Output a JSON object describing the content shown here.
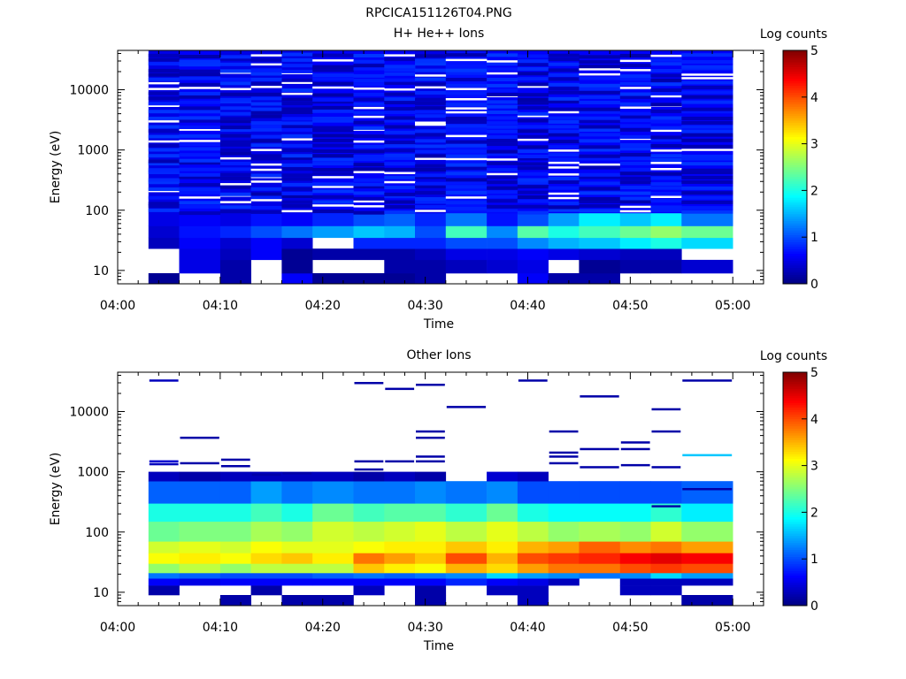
{
  "figure": {
    "title": "RPCICA151126T04.PNG"
  },
  "chart_data": [
    {
      "type": "heatmap",
      "title": "H+ He++ Ions",
      "xlabel": "Time",
      "ylabel": "Energy (eV)",
      "yscale": "log",
      "xlim": [
        "04:00",
        "05:03"
      ],
      "ylim": [
        6,
        45000
      ],
      "x_ticks": [
        "04:00",
        "04:10",
        "04:20",
        "04:30",
        "04:40",
        "04:50",
        "05:00"
      ],
      "y_ticks": [
        "10",
        "100",
        "1000",
        "10000"
      ],
      "y_tick_values": [
        10,
        100,
        1000,
        10000
      ],
      "colorbar": {
        "label": "Log counts",
        "min": 0,
        "max": 5,
        "ticks": [
          "0",
          "1",
          "2",
          "3",
          "4",
          "5"
        ],
        "colormap": "jet"
      },
      "time_bins": [
        "04:03",
        "04:06",
        "04:10",
        "04:13",
        "04:16",
        "04:19",
        "04:23",
        "04:26",
        "04:29",
        "04:32",
        "04:36",
        "04:39",
        "04:42",
        "04:45",
        "04:49",
        "04:52",
        "04:55"
      ],
      "energy_bands": [
        {
          "emin": 6,
          "emax": 9,
          "values": [
            0.1,
            null,
            0.2,
            null,
            0.6,
            0.1,
            0.1,
            0.1,
            0.2,
            null,
            null,
            0.6,
            0.2,
            0.2,
            null,
            null,
            null
          ]
        },
        {
          "emin": 9,
          "emax": 15,
          "values": [
            null,
            0.5,
            0.2,
            null,
            0.1,
            null,
            null,
            0.2,
            0.2,
            0.3,
            0.4,
            0.5,
            null,
            0.1,
            0.2,
            0.2,
            0.4
          ]
        },
        {
          "emin": 15,
          "emax": 23,
          "values": [
            null,
            0.5,
            0.3,
            0.6,
            0.1,
            0.2,
            0.2,
            0.2,
            0.3,
            0.5,
            0.5,
            0.6,
            0.5,
            0.4,
            0.3,
            0.3,
            null
          ]
        },
        {
          "emin": 23,
          "emax": 35,
          "values": [
            0.3,
            0.6,
            0.4,
            0.6,
            0.4,
            null,
            0.8,
            0.8,
            0.8,
            1.0,
            1.0,
            1.3,
            1.5,
            1.6,
            1.8,
            2.0,
            1.7
          ]
        },
        {
          "emin": 35,
          "emax": 55,
          "values": [
            0.4,
            0.7,
            0.8,
            1.0,
            1.2,
            1.4,
            1.6,
            1.5,
            1.0,
            2.2,
            1.3,
            2.3,
            2.0,
            2.2,
            2.4,
            2.6,
            2.4
          ]
        },
        {
          "emin": 55,
          "emax": 90,
          "values": [
            0.5,
            0.6,
            0.5,
            0.7,
            0.6,
            0.8,
            1.0,
            1.1,
            0.8,
            1.2,
            0.7,
            1.0,
            1.4,
            1.8,
            1.6,
            1.8,
            1.2
          ]
        },
        {
          "emin": 90,
          "emax": 45000,
          "values": [
            0.5,
            0.6,
            0.5,
            0.5,
            0.5,
            0.6,
            0.6,
            0.6,
            0.5,
            0.7,
            0.6,
            0.6,
            0.6,
            0.6,
            0.6,
            0.6,
            0.6
          ]
        }
      ]
    },
    {
      "type": "heatmap",
      "title": "Other Ions",
      "xlabel": "Time",
      "ylabel": "Energy (eV)",
      "yscale": "log",
      "xlim": [
        "04:00",
        "05:03"
      ],
      "ylim": [
        6,
        45000
      ],
      "x_ticks": [
        "04:00",
        "04:10",
        "04:20",
        "04:30",
        "04:40",
        "04:50",
        "05:00"
      ],
      "y_ticks": [
        "10",
        "100",
        "1000",
        "10000"
      ],
      "y_tick_values": [
        10,
        100,
        1000,
        10000
      ],
      "colorbar": {
        "label": "Log counts",
        "min": 0,
        "max": 5,
        "ticks": [
          "0",
          "1",
          "2",
          "3",
          "4",
          "5"
        ],
        "colormap": "jet"
      },
      "time_bins": [
        "04:03",
        "04:06",
        "04:10",
        "04:13",
        "04:16",
        "04:19",
        "04:23",
        "04:26",
        "04:29",
        "04:32",
        "04:36",
        "04:39",
        "04:42",
        "04:45",
        "04:49",
        "04:52",
        "04:55"
      ],
      "energy_bands": [
        {
          "emin": 6,
          "emax": 9,
          "values": [
            null,
            null,
            0.2,
            null,
            0.2,
            0.2,
            null,
            null,
            0.2,
            null,
            null,
            0.3,
            null,
            null,
            null,
            null,
            0.2
          ]
        },
        {
          "emin": 9,
          "emax": 13,
          "values": [
            0.2,
            null,
            null,
            0.2,
            null,
            null,
            0.3,
            null,
            0.2,
            null,
            0.3,
            0.3,
            null,
            null,
            0.3,
            0.3,
            null
          ]
        },
        {
          "emin": 13,
          "emax": 17,
          "values": [
            0.6,
            0.5,
            0.6,
            0.6,
            0.6,
            0.6,
            0.6,
            0.6,
            0.6,
            0.8,
            0.6,
            0.5,
            0.3,
            null,
            0.3,
            0.3,
            0.3
          ]
        },
        {
          "emin": 17,
          "emax": 21,
          "values": [
            1.2,
            1.1,
            1.0,
            1.0,
            1.0,
            1.1,
            1.2,
            1.1,
            1.2,
            1.3,
            1.7,
            1.4,
            1.3,
            1.2,
            1.3,
            1.7,
            1.4
          ]
        },
        {
          "emin": 21,
          "emax": 30,
          "values": [
            2.6,
            2.8,
            2.6,
            2.8,
            2.8,
            2.8,
            3.4,
            3.2,
            3.1,
            3.5,
            3.3,
            3.6,
            3.8,
            3.8,
            4.0,
            4.1,
            4.0
          ]
        },
        {
          "emin": 30,
          "emax": 45,
          "values": [
            3.1,
            3.2,
            3.1,
            3.3,
            3.4,
            3.2,
            3.8,
            3.6,
            3.4,
            4.0,
            3.5,
            4.0,
            4.1,
            4.2,
            4.4,
            4.5,
            4.4
          ]
        },
        {
          "emin": 45,
          "emax": 70,
          "values": [
            2.9,
            3.0,
            2.9,
            3.1,
            3.0,
            3.0,
            3.1,
            3.2,
            3.2,
            3.4,
            3.2,
            3.5,
            3.6,
            3.9,
            3.7,
            3.8,
            3.6
          ]
        },
        {
          "emin": 70,
          "emax": 150,
          "values": [
            2.4,
            2.5,
            2.5,
            2.7,
            2.6,
            2.9,
            2.8,
            2.9,
            3.0,
            2.8,
            3.0,
            2.8,
            2.6,
            2.7,
            2.6,
            2.9,
            2.6
          ]
        },
        {
          "emin": 150,
          "emax": 300,
          "values": [
            2.0,
            2.0,
            2.0,
            2.2,
            2.0,
            2.4,
            2.2,
            2.3,
            2.3,
            2.1,
            2.4,
            2.0,
            1.9,
            1.9,
            1.9,
            2.1,
            1.8
          ]
        },
        {
          "emin": 300,
          "emax": 700,
          "values": [
            1.1,
            1.1,
            1.1,
            1.4,
            1.2,
            1.3,
            1.2,
            1.2,
            1.3,
            1.2,
            1.3,
            1.0,
            1.0,
            1.0,
            1.0,
            1.0,
            1.1
          ]
        },
        {
          "emin": 700,
          "emax": 1000,
          "values": [
            0.3,
            0.2,
            0.3,
            0.3,
            0.3,
            0.3,
            0.2,
            0.3,
            0.2,
            null,
            0.4,
            0.3,
            null,
            null,
            null,
            null,
            null
          ]
        }
      ],
      "sparse_lines": [
        {
          "time_bin": 0,
          "energy": 33000,
          "value": 0.3
        },
        {
          "time_bin": 0,
          "energy": 1500,
          "value": 0.4
        },
        {
          "time_bin": 0,
          "energy": 1350,
          "value": 0.3
        },
        {
          "time_bin": 1,
          "energy": 3700,
          "value": 0.2
        },
        {
          "time_bin": 1,
          "energy": 1400,
          "value": 0.2
        },
        {
          "time_bin": 2,
          "energy": 1600,
          "value": 0.2
        },
        {
          "time_bin": 2,
          "energy": 1250,
          "value": 0.2
        },
        {
          "time_bin": 3,
          "energy": 900,
          "value": 0.2
        },
        {
          "time_bin": 4,
          "energy": 950,
          "value": 0.2
        },
        {
          "time_bin": 6,
          "energy": 30000,
          "value": 0.2
        },
        {
          "time_bin": 6,
          "energy": 1500,
          "value": 0.2
        },
        {
          "time_bin": 6,
          "energy": 1100,
          "value": 0.2
        },
        {
          "time_bin": 7,
          "energy": 24000,
          "value": 0.2
        },
        {
          "time_bin": 7,
          "energy": 1500,
          "value": 0.2
        },
        {
          "time_bin": 8,
          "energy": 28000,
          "value": 0.2
        },
        {
          "time_bin": 8,
          "energy": 4700,
          "value": 0.2
        },
        {
          "time_bin": 8,
          "energy": 3700,
          "value": 0.2
        },
        {
          "time_bin": 8,
          "energy": 1800,
          "value": 0.2
        },
        {
          "time_bin": 8,
          "energy": 1500,
          "value": 0.2
        },
        {
          "time_bin": 9,
          "energy": 12000,
          "value": 0.2
        },
        {
          "time_bin": 11,
          "energy": 33000,
          "value": 0.2
        },
        {
          "time_bin": 12,
          "energy": 4700,
          "value": 0.2
        },
        {
          "time_bin": 12,
          "energy": 2100,
          "value": 0.2
        },
        {
          "time_bin": 12,
          "energy": 1800,
          "value": 0.2
        },
        {
          "time_bin": 12,
          "energy": 1400,
          "value": 0.2
        },
        {
          "time_bin": 13,
          "energy": 18000,
          "value": 0.2
        },
        {
          "time_bin": 13,
          "energy": 2400,
          "value": 0.2
        },
        {
          "time_bin": 13,
          "energy": 1200,
          "value": 0.2
        },
        {
          "time_bin": 14,
          "energy": 3100,
          "value": 0.2
        },
        {
          "time_bin": 14,
          "energy": 2400,
          "value": 0.2
        },
        {
          "time_bin": 14,
          "energy": 1300,
          "value": 0.2
        },
        {
          "time_bin": 15,
          "energy": 11000,
          "value": 0.2
        },
        {
          "time_bin": 15,
          "energy": 4700,
          "value": 0.2
        },
        {
          "time_bin": 15,
          "energy": 1200,
          "value": 0.2
        },
        {
          "time_bin": 15,
          "energy": 270,
          "value": 0.2
        },
        {
          "time_bin": 16,
          "energy": 33000,
          "value": 0.2
        },
        {
          "time_bin": 16,
          "energy": 1900,
          "value": 1.6
        },
        {
          "time_bin": 16,
          "energy": 520,
          "value": 0.2
        }
      ]
    }
  ]
}
